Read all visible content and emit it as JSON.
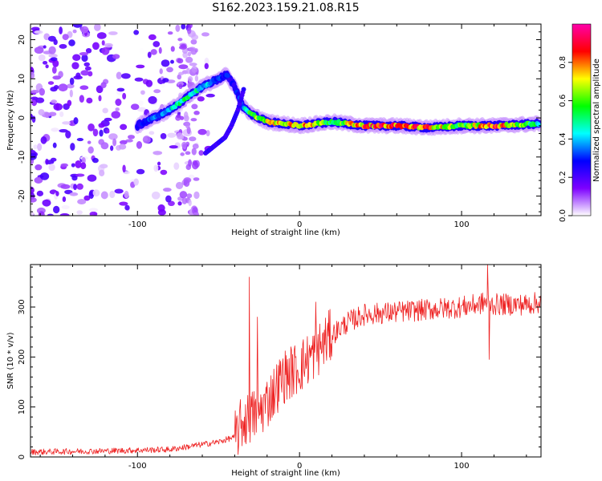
{
  "title": "S162.2023.159.21.08.R15",
  "chart_data": [
    {
      "type": "heatmap",
      "name": "spectrogram",
      "xlabel": "Height of straight line (km)",
      "ylabel": "Frequency (Hz)",
      "xlim": [
        -166,
        149
      ],
      "ylim": [
        -25,
        24
      ],
      "xticks": [
        -100,
        0,
        100
      ],
      "xtick_labels": [
        "-100",
        "0",
        "100"
      ],
      "yticks": [
        -20,
        -10,
        0,
        10,
        20
      ],
      "ytick_labels": [
        "-20",
        "-10",
        "0",
        "10",
        "20"
      ],
      "colorbar": {
        "label": "Normalized spectral amplitude",
        "range": [
          0,
          1
        ],
        "ticks": [
          0.0,
          0.2,
          0.4,
          0.6,
          0.8
        ],
        "tick_labels": [
          "0.0",
          "0.2",
          "0.4",
          "0.6",
          "0.8"
        ],
        "colors": [
          "#ffffff",
          "#7d00ff",
          "#0000ff",
          "#00ffff",
          "#00ff00",
          "#ffff00",
          "#ff0000",
          "#ff00aa"
        ]
      },
      "ridge": {
        "description": "main spectral ridge frequency (Hz) vs height (km)",
        "x": [
          -100,
          -90,
          -80,
          -70,
          -60,
          -50,
          -45,
          -40,
          -35,
          -30,
          -20,
          -10,
          0,
          20,
          40,
          60,
          80,
          100,
          120,
          148
        ],
        "y": [
          -2,
          0,
          2,
          5,
          8,
          10,
          11,
          8,
          3,
          1,
          -1,
          -1.5,
          -2,
          -1,
          -2,
          -2,
          -2.5,
          -2,
          -2,
          -1.5
        ],
        "amplitude": [
          0.25,
          0.35,
          0.45,
          0.55,
          0.45,
          0.35,
          0.3,
          0.25,
          0.4,
          0.6,
          0.75,
          0.8,
          0.85,
          0.6,
          0.85,
          0.9,
          0.85,
          0.6,
          0.9,
          0.5
        ]
      },
      "arc": {
        "description": "secondary rising arc",
        "x": [
          -58,
          -52,
          -46,
          -42,
          -38,
          -34
        ],
        "y": [
          -9,
          -7,
          -5,
          -2,
          2,
          8
        ]
      },
      "noise_region": {
        "x_range": [
          -166,
          -50
        ],
        "y_range": [
          -25,
          24
        ]
      }
    },
    {
      "type": "line",
      "name": "snr",
      "xlabel": "Height of straight line (km)",
      "ylabel": "SNR (10 * v/v)",
      "xlim": [
        -166,
        149
      ],
      "ylim": [
        0,
        385
      ],
      "xticks": [
        -100,
        0,
        100
      ],
      "xtick_labels": [
        "-100",
        "0",
        "100"
      ],
      "yticks": [
        0,
        100,
        200,
        300
      ],
      "ytick_labels": [
        "0",
        "100",
        "200",
        "300"
      ],
      "color": "#ee2222",
      "series": [
        {
          "name": "SNR",
          "x": [
            -166,
            -120,
            -80,
            -60,
            -50,
            -40,
            -35,
            -30,
            -25,
            -20,
            -10,
            0,
            10,
            20,
            30,
            40,
            60,
            80,
            100,
            110,
            115,
            120,
            140,
            149
          ],
          "y": [
            10,
            12,
            15,
            25,
            30,
            40,
            70,
            80,
            90,
            110,
            160,
            180,
            210,
            245,
            270,
            285,
            290,
            295,
            300,
            305,
            310,
            305,
            305,
            310
          ]
        }
      ],
      "spikes": [
        {
          "x": -31,
          "y": 360
        },
        {
          "x": -26,
          "y": 280
        },
        {
          "x": 10,
          "y": 310
        },
        {
          "x": 116,
          "y": 385
        },
        {
          "x": 117,
          "y": 195
        }
      ]
    }
  ]
}
